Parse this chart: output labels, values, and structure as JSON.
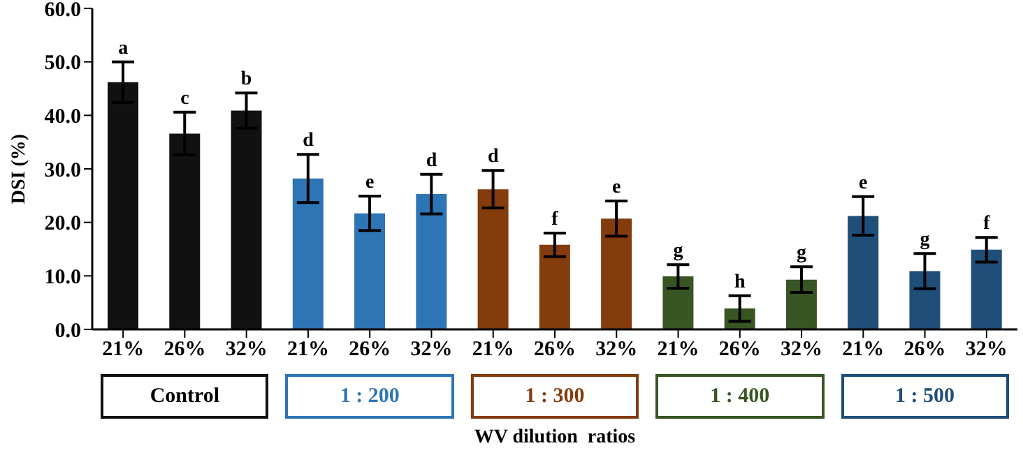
{
  "chart_data": {
    "type": "bar",
    "stacked": true,
    "xlabel": "WV dilution  ratios",
    "ylabel": "DSI (%)",
    "legend": "bottom",
    "categories": [
      "21%",
      "26%",
      "32%",
      "21%",
      "26%",
      "32%",
      "21%",
      "26%",
      "32%",
      "21%",
      "26%",
      "32%",
      "21%",
      "26%",
      "32%"
    ],
    "ylim": [
      0,
      60
    ],
    "yticks": [
      {
        "value": 0,
        "label": "0.0"
      },
      {
        "value": 10,
        "label": "10.0"
      },
      {
        "value": 20,
        "label": "20.0"
      },
      {
        "value": 30,
        "label": "30.0"
      },
      {
        "value": 40,
        "label": "40.0"
      },
      {
        "value": 50,
        "label": "50.0"
      },
      {
        "value": 60,
        "label": "60.0"
      }
    ],
    "series": [
      {
        "name": "Control",
        "color": "#111111",
        "values": [
          46.2,
          36.6,
          40.9,
          null,
          null,
          null,
          null,
          null,
          null,
          null,
          null,
          null,
          null,
          null,
          null
        ],
        "errors": [
          3.8,
          4.0,
          3.3,
          null,
          null,
          null,
          null,
          null,
          null,
          null,
          null,
          null,
          null,
          null,
          null
        ],
        "value_labels": [
          "a",
          "c",
          "b",
          null,
          null,
          null,
          null,
          null,
          null,
          null,
          null,
          null,
          null,
          null,
          null
        ]
      },
      {
        "name": "1 : 200",
        "color": "#2e75b6",
        "values": [
          null,
          null,
          null,
          28.2,
          21.7,
          25.3,
          null,
          null,
          null,
          null,
          null,
          null,
          null,
          null,
          null
        ],
        "errors": [
          null,
          null,
          null,
          4.5,
          3.2,
          3.7,
          null,
          null,
          null,
          null,
          null,
          null,
          null,
          null,
          null
        ],
        "value_labels": [
          null,
          null,
          null,
          "d",
          "e",
          "d",
          null,
          null,
          null,
          null,
          null,
          null,
          null,
          null,
          null
        ]
      },
      {
        "name": "1 : 300",
        "color": "#843c0c",
        "values": [
          null,
          null,
          null,
          null,
          null,
          null,
          26.2,
          15.8,
          20.7,
          null,
          null,
          null,
          null,
          null,
          null
        ],
        "errors": [
          null,
          null,
          null,
          null,
          null,
          null,
          3.5,
          2.2,
          3.3,
          null,
          null,
          null,
          null,
          null,
          null
        ],
        "value_labels": [
          null,
          null,
          null,
          null,
          null,
          null,
          "d",
          "f",
          "e",
          null,
          null,
          null,
          null,
          null,
          null
        ]
      },
      {
        "name": "1 : 400",
        "color": "#375623",
        "values": [
          null,
          null,
          null,
          null,
          null,
          null,
          null,
          null,
          null,
          9.9,
          3.9,
          9.3,
          null,
          null,
          null
        ],
        "errors": [
          null,
          null,
          null,
          null,
          null,
          null,
          null,
          null,
          null,
          2.2,
          2.4,
          2.4,
          null,
          null,
          null
        ],
        "value_labels": [
          null,
          null,
          null,
          null,
          null,
          null,
          null,
          null,
          null,
          "g",
          "h",
          "g",
          null,
          null,
          null
        ]
      },
      {
        "name": "1 : 500",
        "color": "#1f4e79",
        "values": [
          null,
          null,
          null,
          null,
          null,
          null,
          null,
          null,
          null,
          null,
          null,
          null,
          21.2,
          10.9,
          14.9
        ],
        "errors": [
          null,
          null,
          null,
          null,
          null,
          null,
          null,
          null,
          null,
          null,
          null,
          null,
          3.6,
          3.3,
          2.3
        ],
        "value_labels": [
          null,
          null,
          null,
          null,
          null,
          null,
          null,
          null,
          null,
          null,
          null,
          null,
          "e",
          "g",
          "f"
        ]
      }
    ]
  }
}
